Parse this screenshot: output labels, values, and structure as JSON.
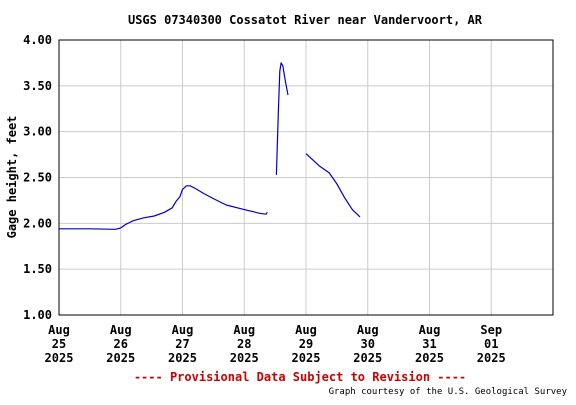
{
  "chart_data": {
    "type": "line",
    "title": "USGS 07340300 Cossatot River near Vandervoort, AR",
    "ylabel": "Gage height, feet",
    "xlabel": "",
    "ylim": [
      1.0,
      4.0
    ],
    "xlim": [
      "2025-08-25T00:00",
      "2025-09-02T00:00"
    ],
    "y_ticks": [
      "1.00",
      "1.50",
      "2.00",
      "2.50",
      "3.00",
      "3.50",
      "4.00"
    ],
    "x_ticks": [
      {
        "month": "Aug",
        "day": "25",
        "year": "2025",
        "t": "2025-08-25T00:00"
      },
      {
        "month": "Aug",
        "day": "26",
        "year": "2025",
        "t": "2025-08-26T00:00"
      },
      {
        "month": "Aug",
        "day": "27",
        "year": "2025",
        "t": "2025-08-27T00:00"
      },
      {
        "month": "Aug",
        "day": "28",
        "year": "2025",
        "t": "2025-08-28T00:00"
      },
      {
        "month": "Aug",
        "day": "29",
        "year": "2025",
        "t": "2025-08-29T00:00"
      },
      {
        "month": "Aug",
        "day": "30",
        "year": "2025",
        "t": "2025-08-30T00:00"
      },
      {
        "month": "Aug",
        "day": "31",
        "year": "2025",
        "t": "2025-08-31T00:00"
      },
      {
        "month": "Sep",
        "day": "01",
        "year": "2025",
        "t": "2025-09-01T00:00"
      }
    ],
    "grid": true,
    "series": [
      {
        "color": "#0000cc",
        "segments": [
          [
            [
              "2025-08-25T00:00",
              1.94
            ],
            [
              "2025-08-25T12:00",
              1.94
            ],
            [
              "2025-08-25T22:00",
              1.935
            ],
            [
              "2025-08-26T00:00",
              1.95
            ],
            [
              "2025-08-26T02:00",
              1.99
            ],
            [
              "2025-08-26T05:00",
              2.03
            ],
            [
              "2025-08-26T09:00",
              2.06
            ],
            [
              "2025-08-26T13:00",
              2.08
            ],
            [
              "2025-08-26T17:00",
              2.12
            ],
            [
              "2025-08-26T20:00",
              2.17
            ],
            [
              "2025-08-26T21:30",
              2.24
            ],
            [
              "2025-08-26T23:00",
              2.29
            ],
            [
              "2025-08-27T00:00",
              2.37
            ],
            [
              "2025-08-27T01:30",
              2.41
            ],
            [
              "2025-08-27T03:00",
              2.41
            ],
            [
              "2025-08-27T05:00",
              2.38
            ],
            [
              "2025-08-27T08:00",
              2.33
            ],
            [
              "2025-08-27T12:00",
              2.27
            ],
            [
              "2025-08-27T17:00",
              2.2
            ],
            [
              "2025-08-28T00:00",
              2.15
            ],
            [
              "2025-08-28T06:00",
              2.11
            ],
            [
              "2025-08-28T08:30",
              2.1
            ],
            [
              "2025-08-28T09:00",
              2.12
            ]
          ],
          [
            [
              "2025-08-28T12:30",
              2.53
            ],
            [
              "2025-08-28T13:15",
              3.2
            ],
            [
              "2025-08-28T13:50",
              3.66
            ],
            [
              "2025-08-28T14:20",
              3.75
            ],
            [
              "2025-08-28T15:00",
              3.72
            ],
            [
              "2025-08-28T16:00",
              3.55
            ],
            [
              "2025-08-28T17:00",
              3.4
            ]
          ],
          [
            [
              "2025-08-29T00:00",
              2.76
            ],
            [
              "2025-08-29T02:00",
              2.71
            ],
            [
              "2025-08-29T05:00",
              2.63
            ],
            [
              "2025-08-29T09:00",
              2.55
            ],
            [
              "2025-08-29T12:00",
              2.43
            ],
            [
              "2025-08-29T15:00",
              2.28
            ],
            [
              "2025-08-29T18:00",
              2.15
            ],
            [
              "2025-08-29T21:00",
              2.07
            ]
          ]
        ]
      }
    ]
  },
  "footer": {
    "provisional": "---- Provisional Data Subject to Revision ----",
    "credit": "Graph courtesy of the U.S. Geological Survey"
  },
  "colors": {
    "line": "#0000cc",
    "grid": "#cccccc",
    "axis": "#000000",
    "provisional": "#cc0000",
    "background": "#ffffff"
  }
}
